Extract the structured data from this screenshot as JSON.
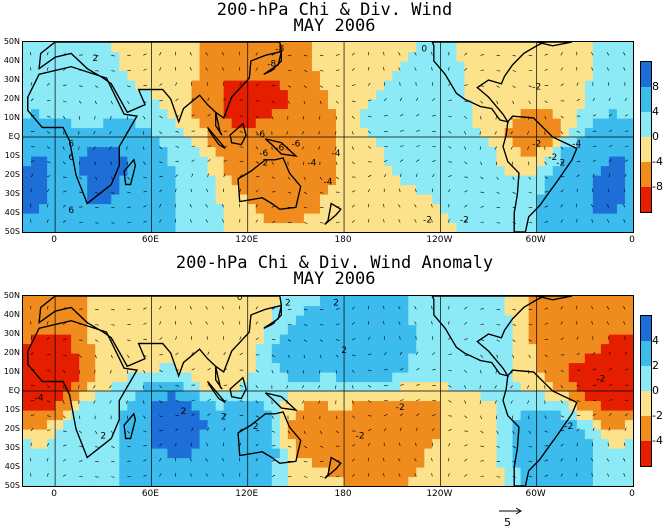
{
  "colors": {
    "red": "#e61e00",
    "orange": "#f08c1e",
    "yellow": "#fde28c",
    "cyan": "#8ce9f6",
    "lightblue": "#3cbbed",
    "blue": "#1e6ed7",
    "land": "#000000"
  },
  "chart_data": [
    {
      "type": "heatmap",
      "title": "200-hPa Chi & Div. Wind",
      "subtitle": "MAY 2006",
      "x_ticks": [
        "0",
        "60E",
        "120E",
        "180",
        "120W",
        "60W",
        "0"
      ],
      "y_ticks": [
        "50N",
        "40N",
        "30N",
        "20N",
        "10N",
        "EQ",
        "10S",
        "20S",
        "30S",
        "40S",
        "50S"
      ],
      "xlim": [
        -20,
        360
      ],
      "ylim": [
        -50,
        50
      ],
      "colorbar": {
        "labels": [
          "8",
          "4",
          "0",
          "-4",
          "-8"
        ],
        "levels": [
          -12,
          -8,
          -4,
          0,
          4,
          8,
          12
        ]
      },
      "contour_labels": [
        "-8",
        "-8",
        "-6",
        "-6",
        "-6",
        "-4",
        "-2",
        "-2",
        "-2",
        "-2",
        "-4",
        "-6",
        "-4",
        "-2",
        "6",
        "6",
        "2",
        "0",
        "-2",
        "-4",
        "-2",
        "6"
      ],
      "field": [
        {
          "lon": 30,
          "lat": -18,
          "value": 9
        },
        {
          "lon": 5,
          "lat": -22,
          "value": 7
        },
        {
          "lon": 60,
          "lat": -25,
          "value": 4
        },
        {
          "lon": 20,
          "lat": 25,
          "value": 2
        },
        {
          "lon": 330,
          "lat": -15,
          "value": 6
        },
        {
          "lon": 345,
          "lat": -22,
          "value": 9
        },
        {
          "lon": 220,
          "lat": 15,
          "value": 3
        },
        {
          "lon": 250,
          "lat": -20,
          "value": 3
        },
        {
          "lon": 125,
          "lat": 20,
          "value": -9
        },
        {
          "lon": 140,
          "lat": 0,
          "value": -7
        },
        {
          "lon": 125,
          "lat": 40,
          "value": -7
        },
        {
          "lon": 170,
          "lat": -20,
          "value": -4
        },
        {
          "lon": 300,
          "lat": 5,
          "value": -5
        },
        {
          "lon": 295,
          "lat": 25,
          "value": -2
        },
        {
          "lon": 190,
          "lat": 40,
          "value": -2
        },
        {
          "lon": 60,
          "lat": 45,
          "value": -1
        },
        {
          "lon": 225,
          "lat": -45,
          "value": -1
        }
      ]
    },
    {
      "type": "heatmap",
      "title": "200-hPa Chi & Div. Wind Anomaly",
      "subtitle": "MAY 2006",
      "x_ticks": [
        "0",
        "60E",
        "120E",
        "180",
        "120W",
        "60W",
        "0"
      ],
      "y_ticks": [
        "50N",
        "40N",
        "30N",
        "20N",
        "10N",
        "EQ",
        "10S",
        "20S",
        "30S",
        "40S",
        "50S"
      ],
      "xlim": [
        -20,
        360
      ],
      "ylim": [
        -50,
        50
      ],
      "colorbar": {
        "labels": [
          "4",
          "2",
          "0",
          "-2",
          "-4"
        ],
        "levels": [
          -6,
          -4,
          -2,
          0,
          2,
          4,
          6
        ]
      },
      "contour_labels": [
        "-4",
        "2",
        "0",
        "2",
        "2",
        "2",
        "2",
        "2",
        "-2",
        "-2",
        "2",
        "-2",
        "-2"
      ],
      "field": [
        {
          "lon": 75,
          "lat": -15,
          "value": 4.5
        },
        {
          "lon": 120,
          "lat": -25,
          "value": 3.5
        },
        {
          "lon": 30,
          "lat": -25,
          "value": 2
        },
        {
          "lon": 155,
          "lat": 20,
          "value": 2.5
        },
        {
          "lon": 195,
          "lat": 20,
          "value": 3.5
        },
        {
          "lon": 310,
          "lat": -28,
          "value": 3
        },
        {
          "lon": 255,
          "lat": 25,
          "value": 1
        },
        {
          "lon": 350,
          "lat": 10,
          "value": -5
        },
        {
          "lon": 330,
          "lat": 35,
          "value": -3
        },
        {
          "lon": -15,
          "lat": 10,
          "value": -4.5
        },
        {
          "lon": 220,
          "lat": -22,
          "value": -3
        },
        {
          "lon": 195,
          "lat": -20,
          "value": -2.5
        },
        {
          "lon": 160,
          "lat": -20,
          "value": -2.5
        },
        {
          "lon": 250,
          "lat": -35,
          "value": -1
        },
        {
          "lon": 100,
          "lat": 15,
          "value": -1
        },
        {
          "lon": 50,
          "lat": 30,
          "value": -1
        },
        {
          "lon": 110,
          "lat": 40,
          "value": -1
        }
      ]
    }
  ],
  "vector_label": "5"
}
